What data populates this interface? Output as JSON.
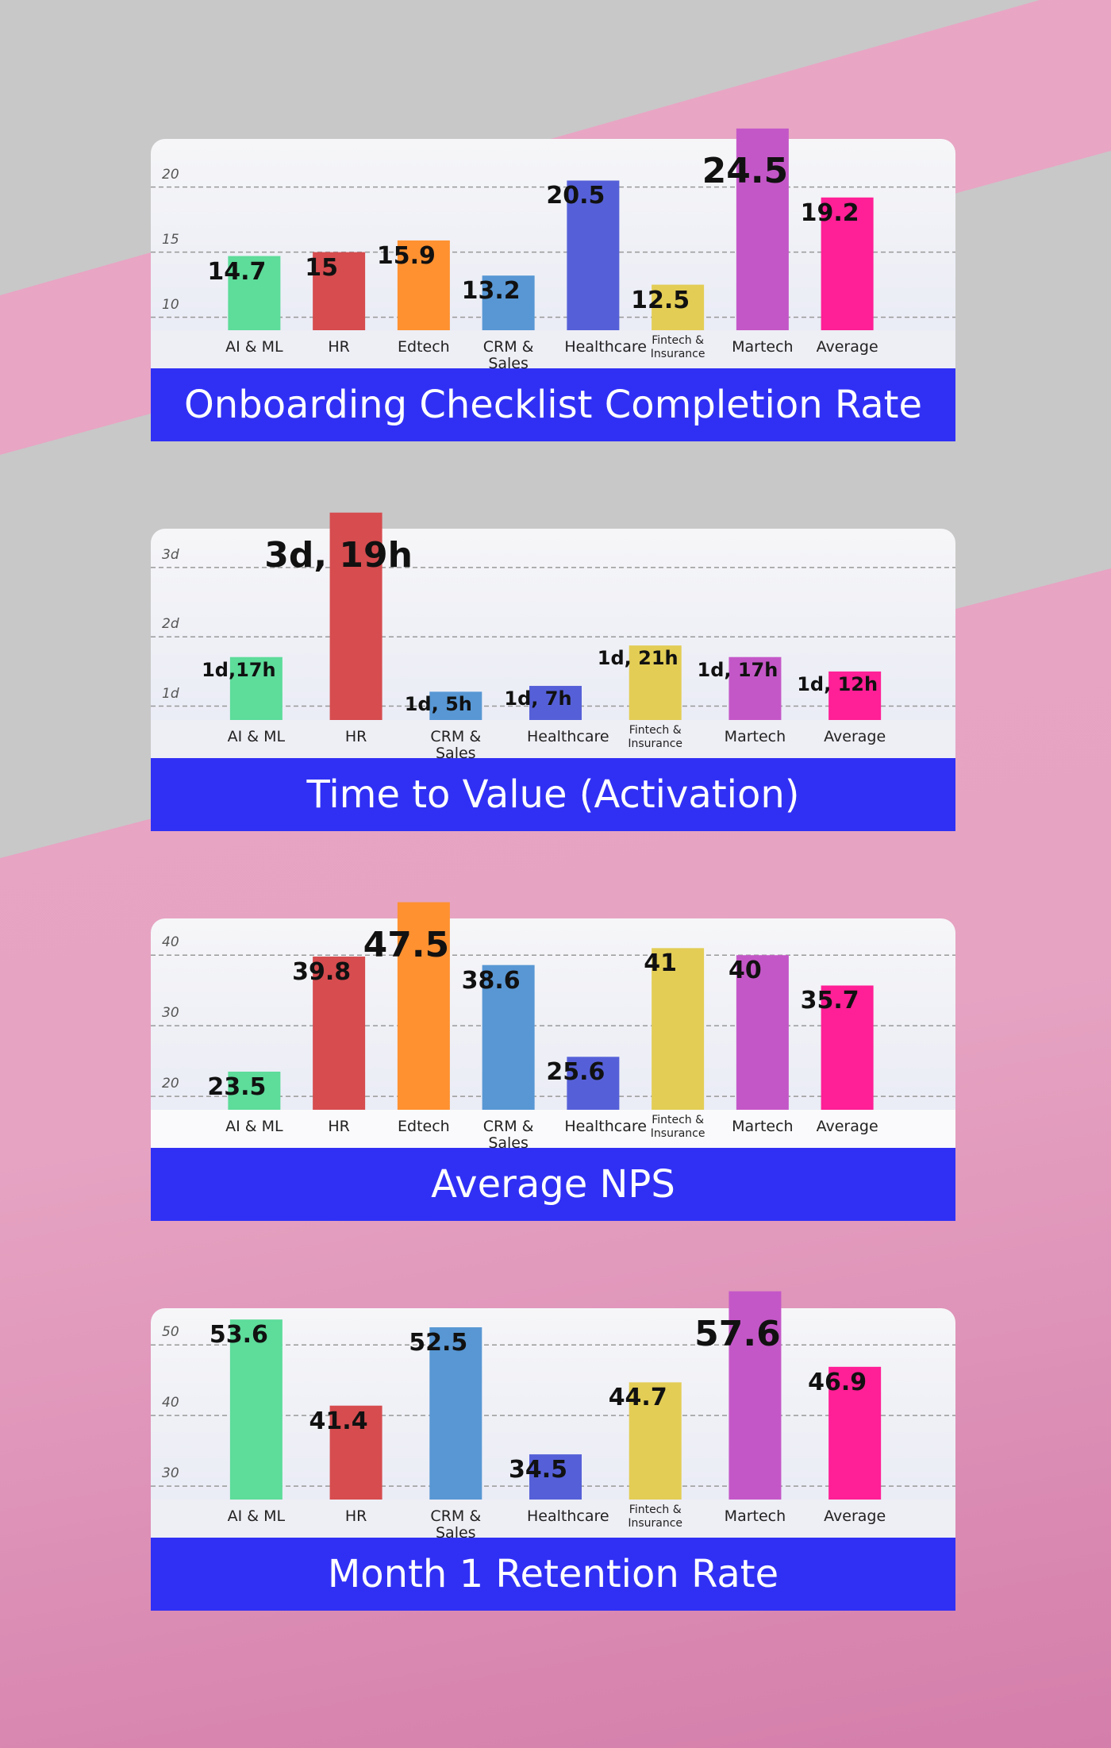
{
  "chart_data": [
    {
      "type": "bar",
      "title": "Onboarding Checklist Completion Rate",
      "categories": [
        "AI & ML",
        "HR",
        "Edtech",
        "CRM & Sales",
        "Healthcare",
        "Fintech & Insurance",
        "Martech",
        "Average"
      ],
      "values": [
        14.7,
        15,
        15.9,
        13.2,
        20.5,
        12.5,
        24.5,
        19.2
      ],
      "colors": [
        "#5ddc9a",
        "#d64c4f",
        "#ff9130",
        "#5897d4",
        "#5560d8",
        "#e3cd55",
        "#c457c8",
        "#ff1f96"
      ],
      "ylim": [
        9,
        23.7
      ],
      "yticks": [
        10,
        15,
        20
      ],
      "grid": true
    },
    {
      "type": "bar",
      "title": "Time to Value (Activation)",
      "categories": [
        "AI & ML",
        "HR",
        "CRM & Sales",
        "Healthcare",
        "Fintech & Insurance",
        "Martech",
        "Average"
      ],
      "values": [
        1.708,
        3.792,
        1.208,
        1.292,
        1.875,
        1.708,
        1.5
      ],
      "value_labels": [
        "1d,17h",
        "3d, 19h",
        "1d, 5h",
        "1d, 7h",
        "1d, 21h",
        "1d, 17h",
        "1d, 12h"
      ],
      "colors": [
        "#5ddc9a",
        "#d64c4f",
        "#5897d4",
        "#5560d8",
        "#e3cd55",
        "#c457c8",
        "#ff1f96"
      ],
      "ylim": [
        0.8,
        3.56
      ],
      "yticks": [
        {
          "value": 1,
          "label": "1d"
        },
        {
          "value": 2,
          "label": "2d"
        },
        {
          "value": 3,
          "label": "3d"
        }
      ],
      "grid": true
    },
    {
      "type": "bar",
      "title": "Average NPS",
      "categories": [
        "AI & ML",
        "HR",
        "Edtech",
        "CRM & Sales",
        "Healthcare",
        "Fintech & Insurance",
        "Martech",
        "Average"
      ],
      "values": [
        23.5,
        39.8,
        47.5,
        38.6,
        25.6,
        41,
        40,
        35.7
      ],
      "colors": [
        "#5ddc9a",
        "#d64c4f",
        "#ff9130",
        "#5897d4",
        "#5560d8",
        "#e3cd55",
        "#c457c8",
        "#ff1f96"
      ],
      "ylim": [
        18.1,
        45.2
      ],
      "yticks": [
        20,
        30,
        40
      ],
      "grid": true
    },
    {
      "type": "bar",
      "title": "Month 1 Retention Rate",
      "categories": [
        "AI & ML",
        "HR",
        "CRM & Sales",
        "Healthcare",
        "Fintech & Insurance",
        "Martech",
        "Average"
      ],
      "values": [
        53.6,
        41.4,
        52.5,
        34.5,
        44.7,
        57.6,
        46.9
      ],
      "colors": [
        "#5ddc9a",
        "#d64c4f",
        "#5897d4",
        "#5560d8",
        "#e3cd55",
        "#c457c8",
        "#ff1f96"
      ],
      "ylim": [
        28.1,
        55.2
      ],
      "yticks": [
        30,
        40,
        50
      ],
      "grid": true
    }
  ]
}
